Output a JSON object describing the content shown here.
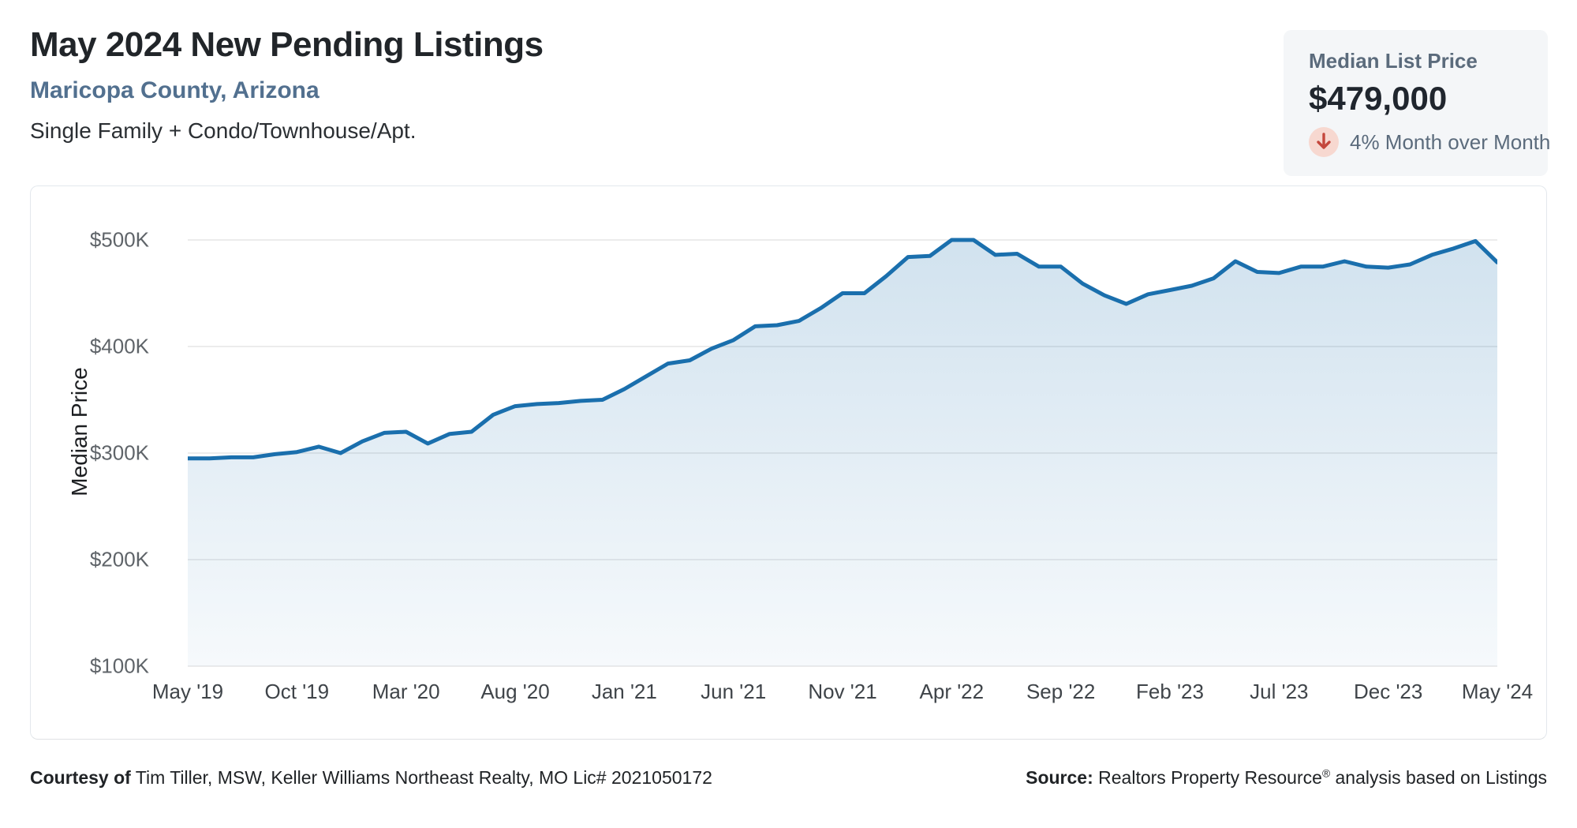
{
  "header": {
    "title": "May 2024 New Pending Listings",
    "subtitle": "Maricopa County, Arizona",
    "property_types": "Single Family + Condo/Townhouse/Apt."
  },
  "kpi": {
    "label": "Median List Price",
    "value": "$479,000",
    "change_text": "4% Month over Month",
    "direction": "down",
    "arrow_icon": "arrow-down-icon",
    "colors": {
      "arrow": "#c4473c",
      "arrow_bg": "#f7d8d0",
      "box_bg": "#f4f6f8"
    }
  },
  "chart_data": {
    "type": "area",
    "title": "",
    "xlabel": "",
    "ylabel": "Median Price",
    "unit": "USD thousands",
    "grid": true,
    "legend": false,
    "ylim": [
      100,
      540
    ],
    "y_tick_values": [
      500,
      400,
      300,
      200,
      100
    ],
    "y_tick_labels": [
      "$500K",
      "$400K",
      "$300K",
      "$200K",
      "$100K"
    ],
    "x_tick_labels": [
      "May '19",
      "Oct '19",
      "Mar '20",
      "Aug '20",
      "Jan '21",
      "Jun '21",
      "Nov '21",
      "Apr '22",
      "Sep '22",
      "Feb '23",
      "Jul '23",
      "Dec '23",
      "May '24"
    ],
    "x": [
      "May '19",
      "Jun '19",
      "Jul '19",
      "Aug '19",
      "Sep '19",
      "Oct '19",
      "Nov '19",
      "Dec '19",
      "Jan '20",
      "Feb '20",
      "Mar '20",
      "Apr '20",
      "May '20",
      "Jun '20",
      "Jul '20",
      "Aug '20",
      "Sep '20",
      "Oct '20",
      "Nov '20",
      "Dec '20",
      "Jan '21",
      "Feb '21",
      "Mar '21",
      "Apr '21",
      "May '21",
      "Jun '21",
      "Jul '21",
      "Aug '21",
      "Sep '21",
      "Oct '21",
      "Nov '21",
      "Dec '21",
      "Jan '22",
      "Feb '22",
      "Mar '22",
      "Apr '22",
      "May '22",
      "Jun '22",
      "Jul '22",
      "Aug '22",
      "Sep '22",
      "Oct '22",
      "Nov '22",
      "Dec '22",
      "Jan '23",
      "Feb '23",
      "Mar '23",
      "Apr '23",
      "May '23",
      "Jun '23",
      "Jul '23",
      "Aug '23",
      "Sep '23",
      "Oct '23",
      "Nov '23",
      "Dec '23",
      "Jan '24",
      "Feb '24",
      "Mar '24",
      "Apr '24",
      "May '24"
    ],
    "values": [
      295,
      295,
      296,
      296,
      299,
      301,
      306,
      300,
      311,
      319,
      320,
      309,
      318,
      320,
      336,
      344,
      346,
      347,
      349,
      350,
      360,
      372,
      384,
      387,
      398,
      406,
      419,
      420,
      424,
      436,
      450,
      450,
      466,
      484,
      485,
      500,
      500,
      486,
      487,
      475,
      475,
      459,
      448,
      440,
      449,
      453,
      457,
      464,
      480,
      470,
      469,
      475,
      475,
      480,
      475,
      474,
      477,
      486,
      492,
      499,
      479
    ],
    "line_color": "#1a6fad",
    "fill_top": "rgba(26,111,173,0.20)",
    "fill_bottom": "rgba(26,111,173,0.04)",
    "gridline_color": "#ececec"
  },
  "footer": {
    "courtesy_label": "Courtesy of",
    "courtesy_text": " Tim Tiller, MSW, Keller Williams Northeast Realty, MO Lic# 2021050172",
    "source_label": "Source:",
    "source_text_pre": " Realtors Property Resource",
    "source_reg_mark": "®",
    "source_text_post": " analysis based on Listings"
  }
}
